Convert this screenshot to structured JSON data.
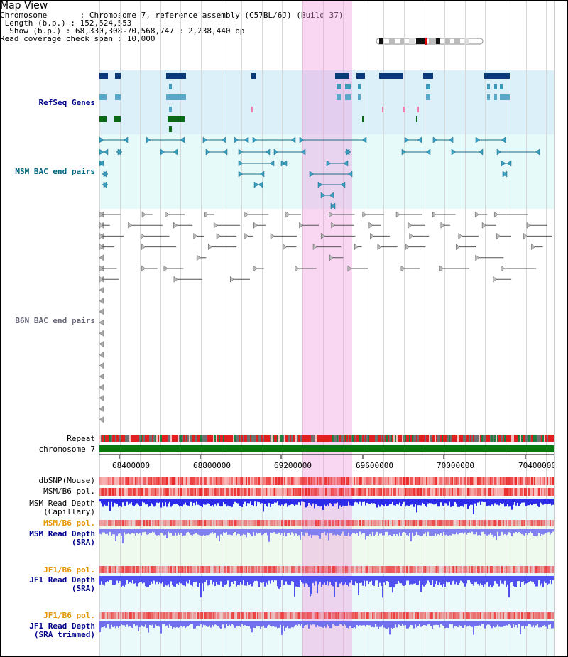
{
  "title": "Map View",
  "header": {
    "chromosome": "Chromosome       : Chromosome 7, reference assembly (C57BL/6J) (Build 37)",
    "length": "Length (b.p.) : 152,524,553",
    "show": "Show (b.p.) : 68,330,308-70,568,747 : 2,238,440 bp",
    "span": "Read coverage check span : 10,000"
  },
  "tracks": {
    "refseq": "RefSeq Genes",
    "msm_bac": "MSM BAC end pairs",
    "b6n_bac": "B6N BAC end pairs",
    "repeat": "Repeat",
    "chromosome": "chromosome 7",
    "dbsnp": "dbSNP(Mouse)",
    "msm_b6_pol": "MSM/B6 pol.",
    "msm_depth_cap_1": "MSM Read Depth",
    "msm_depth_cap_2": "(Capillary)",
    "msm_b6_pol2": "MSM/B6 pol.",
    "msm_depth_sra_1": "MSM Read Depth",
    "msm_depth_sra_2": "(SRA)",
    "jf1_pol": "JF1/B6 pol.",
    "jf1_depth_1": "JF1 Read Depth",
    "jf1_depth_2": "(SRA)",
    "jf1_pol2": "JF1/B6 pol.",
    "jf1_trim_1": "JF1 Read Depth",
    "jf1_trim_2": "(SRA trimmed)"
  },
  "axis_ticks": [
    "68400000",
    "68800000",
    "69200000",
    "69600000",
    "70000000",
    "70400000"
  ],
  "colors": {
    "refseq_bg": "#dcf0fa",
    "bac_bg": "#e6fafa",
    "label_blue": "#00008b",
    "label_teal": "#006680",
    "label_orange": "#e69500",
    "highlight": "#f0a0e0"
  }
}
